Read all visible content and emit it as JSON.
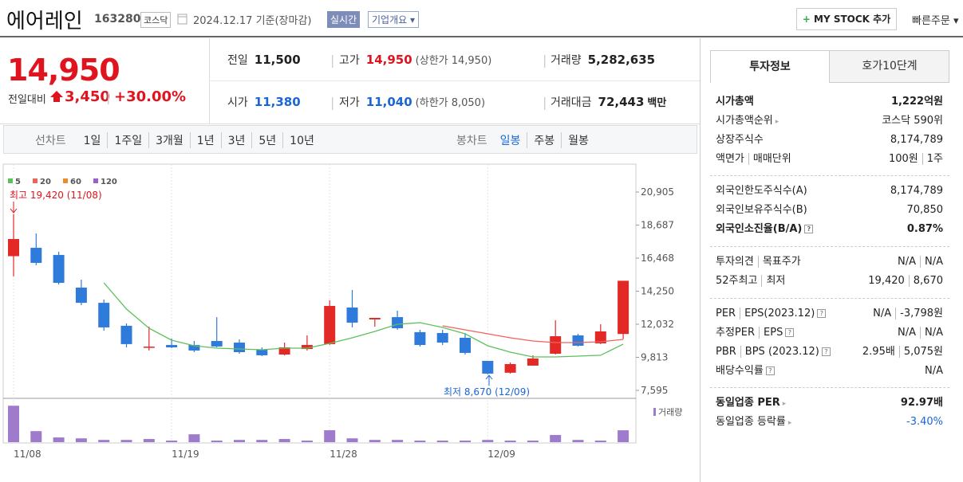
{
  "header": {
    "title": "에어레인",
    "code": "163280",
    "market": "코스닥",
    "date": "2024.12.17 기준(장마감)",
    "realtime": "실시간",
    "company": "기업개요",
    "mystock": "MY STOCK 추가",
    "quick_order": "빠른주문"
  },
  "price": {
    "current": "14,950",
    "change_label": "전일대비",
    "change": "3,450",
    "change_pct": "+30.00%",
    "stats": [
      {
        "label": "전일",
        "value": "11,500",
        "color": "#222222"
      },
      {
        "label": "고가",
        "value": "14,950",
        "note": "(상한가 14,950)",
        "color": "#e0141f"
      },
      {
        "label": "거래량",
        "value": "5,282,635",
        "color": "#222222"
      },
      {
        "label": "시가",
        "value": "11,380",
        "color": "#1a66d6"
      },
      {
        "label": "저가",
        "value": "11,040",
        "note": "(하한가 8,050)",
        "color": "#1a66d6"
      },
      {
        "label": "거래대금",
        "value": "72,443",
        "unit": "백만",
        "color": "#222222"
      }
    ]
  },
  "tabs": {
    "line_label": "선차트",
    "line_periods": [
      "1일",
      "1주일",
      "3개월",
      "1년",
      "3년",
      "5년",
      "10년"
    ],
    "candle_label": "봉차트",
    "candle_periods": [
      "일봉",
      "주봉",
      "월봉"
    ],
    "selected_candle": 0
  },
  "chart_data": {
    "type": "candlestick",
    "categories": [
      "11/08",
      null,
      null,
      null,
      null,
      null,
      null,
      "11/19",
      null,
      null,
      null,
      null,
      null,
      null,
      "11/28",
      null,
      null,
      null,
      null,
      null,
      null,
      "12/09",
      null,
      null,
      null,
      null,
      null,
      null
    ],
    "open": [
      16600,
      17160,
      16680,
      14490,
      13470,
      11930,
      10480,
      10640,
      10640,
      10910,
      10800,
      10320,
      10000,
      10370,
      10700,
      13155,
      12355,
      12510,
      11500,
      11445,
      11125,
      9575,
      8780,
      9255,
      10055,
      11285,
      10750,
      11380
    ],
    "high": [
      19420,
      18125,
      16900,
      15025,
      13690,
      12085,
      11870,
      11070,
      10910,
      12510,
      11015,
      10480,
      10800,
      11285,
      13635,
      14330,
      12460,
      12940,
      11660,
      11660,
      11445,
      9575,
      9465,
      9950,
      12300,
      11390,
      12030,
      14950
    ],
    "low": [
      15250,
      15990,
      14700,
      13315,
      11600,
      10480,
      10270,
      10430,
      10160,
      10480,
      10050,
      9895,
      9950,
      10270,
      10640,
      11820,
      11870,
      11660,
      10535,
      10640,
      10000,
      8670,
      8720,
      9255,
      10000,
      10540,
      10700,
      11040
    ],
    "close": [
      17750,
      16150,
      14810,
      13470,
      11820,
      10700,
      10530,
      10480,
      10270,
      10540,
      10160,
      9950,
      10480,
      10640,
      13260,
      12140,
      12460,
      11765,
      10640,
      10800,
      10110,
      8720,
      9360,
      9735,
      11230,
      10590,
      11550,
      14950
    ],
    "volume": [
      16200000,
      4900000,
      2100000,
      1700000,
      1000000,
      1000000,
      1400000,
      700000,
      3500000,
      700000,
      1000000,
      1000000,
      1400000,
      700000,
      5300000,
      1700000,
      1000000,
      1000000,
      700000,
      700000,
      700000,
      1000000,
      700000,
      700000,
      3200000,
      1000000,
      700000,
      5282635
    ],
    "volume_lim": [
      0,
      17000000
    ],
    "volume_label": "거래량",
    "volume_color": "#9f7bcc",
    "up_color": "#e22926",
    "down_color": "#2f7bdc",
    "ma": [
      {
        "name": "5",
        "color": "#5cc05c",
        "values": [
          null,
          null,
          null,
          null,
          14810,
          13050,
          11765,
          10965,
          10590,
          10430,
          10375,
          10320,
          10430,
          10430,
          10750,
          11125,
          11550,
          12030,
          12140,
          11820,
          11390,
          10590,
          10160,
          9840,
          9840,
          9895,
          9950,
          10700
        ]
      },
      {
        "name": "20",
        "color": "#f0625a",
        "values": [
          null,
          null,
          null,
          null,
          null,
          null,
          null,
          null,
          null,
          null,
          null,
          null,
          null,
          null,
          null,
          null,
          null,
          null,
          null,
          11925,
          11660,
          11390,
          11125,
          10910,
          10800,
          10800,
          10855,
          11015
        ]
      },
      {
        "name": "60",
        "color": "#f08a2c",
        "values": [
          null,
          null,
          null,
          null,
          null,
          null,
          null,
          null,
          null,
          null,
          null,
          null,
          null,
          null,
          null,
          null,
          null,
          null,
          null,
          null,
          null,
          null,
          null,
          null,
          null,
          null,
          null,
          null
        ]
      },
      {
        "name": "120",
        "color": "#9a62c8",
        "values": [
          null,
          null,
          null,
          null,
          null,
          null,
          null,
          null,
          null,
          null,
          null,
          null,
          null,
          null,
          null,
          null,
          null,
          null,
          null,
          null,
          null,
          null,
          null,
          null,
          null,
          null,
          null,
          null
        ]
      }
    ],
    "ylim": [
      7595,
      20905
    ],
    "yticks": [
      {
        "value": 20905,
        "label": "20,905"
      },
      {
        "value": 18687,
        "label": "18,687"
      },
      {
        "value": 16468,
        "label": "16,468"
      },
      {
        "value": 14250,
        "label": "14,250"
      },
      {
        "value": 12032,
        "label": "12,032"
      },
      {
        "value": 9813,
        "label": "9,813"
      },
      {
        "value": 7595,
        "label": "7,595"
      }
    ],
    "annotations": [
      "최고 19,420 (11/08)",
      "최저 8,670 (12/09)"
    ]
  },
  "side": {
    "tabs": [
      "투자정보",
      "호가10단계"
    ],
    "groups": [
      [
        {
          "label": [
            "시가총액"
          ],
          "value": [
            "1,222억원"
          ],
          "bold": true
        },
        {
          "label": [
            "시가총액순위"
          ],
          "value": [
            "코스닥 590위"
          ],
          "arrow": true
        },
        {
          "label": [
            "상장주식수"
          ],
          "value": [
            "8,174,789"
          ]
        },
        {
          "label": [
            "액면가",
            "매매단위"
          ],
          "value": [
            "100원",
            "1주"
          ]
        }
      ],
      [
        {
          "label": [
            "외국인한도주식수(A)"
          ],
          "value": [
            "8,174,789"
          ]
        },
        {
          "label": [
            "외국인보유주식수(B)"
          ],
          "value": [
            "70,850"
          ]
        },
        {
          "label": [
            "외국인소진율(B/A)"
          ],
          "value": [
            "0.87%"
          ],
          "bold": true,
          "help": true
        }
      ],
      [
        {
          "label": [
            "투자의견",
            "목표주가"
          ],
          "value": [
            "N/A",
            "N/A"
          ]
        },
        {
          "label": [
            "52주최고",
            "최저"
          ],
          "value": [
            "19,420",
            "8,670"
          ]
        }
      ],
      [
        {
          "label": [
            "PER",
            "EPS(2023.12)"
          ],
          "value": [
            "N/A",
            "-3,798원"
          ],
          "help": true
        },
        {
          "label": [
            "추정PER",
            "EPS"
          ],
          "value": [
            "N/A",
            "N/A"
          ],
          "help": true
        },
        {
          "label": [
            "PBR",
            "BPS (2023.12)"
          ],
          "value": [
            "2.95배",
            "5,075원"
          ],
          "help": true
        },
        {
          "label": [
            "배당수익률"
          ],
          "value": [
            "N/A"
          ],
          "help": true
        }
      ],
      [
        {
          "label": [
            "동일업종 PER"
          ],
          "value": [
            "92.97배"
          ],
          "bold": true,
          "arrow": true
        },
        {
          "label": [
            "동일업종 등락률"
          ],
          "value": [
            "-3.40%"
          ],
          "arrow": true,
          "color": "#1a66d6"
        }
      ]
    ]
  }
}
